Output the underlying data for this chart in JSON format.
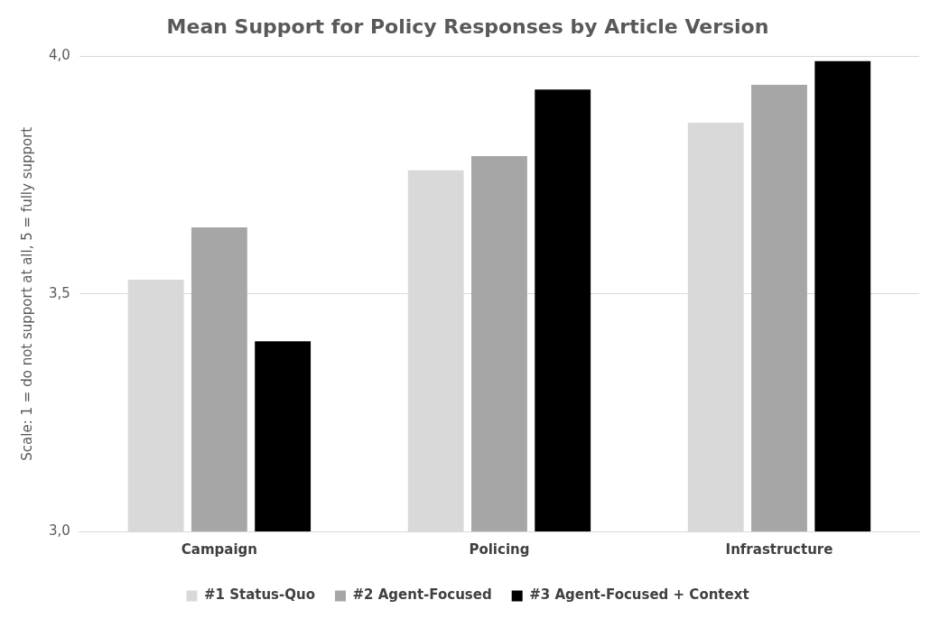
{
  "chart_data": {
    "type": "bar",
    "title": "Mean Support for Policy Responses by Article Version",
    "ylabel": "Scale: 1 = do not support at all, 5 = fully support",
    "categories": [
      "Campaign",
      "Policing",
      "Infrastructure"
    ],
    "series": [
      {
        "name": "#1 Status-Quo",
        "color": "#d9d9d9",
        "values": [
          3.53,
          3.76,
          3.86
        ]
      },
      {
        "name": "#2 Agent-Focused",
        "color": "#a6a6a6",
        "values": [
          3.64,
          3.79,
          3.94
        ]
      },
      {
        "name": "#3 Agent-Focused + Context",
        "color": "#000000",
        "values": [
          3.4,
          3.93,
          3.99
        ]
      }
    ],
    "ylim": [
      3,
      4
    ],
    "yticks": [
      {
        "value": 3,
        "label": "3,0"
      },
      {
        "value": 3.5,
        "label": "3,5"
      },
      {
        "value": 4,
        "label": "4,0"
      }
    ],
    "grid": "y",
    "legend": "bottom"
  }
}
